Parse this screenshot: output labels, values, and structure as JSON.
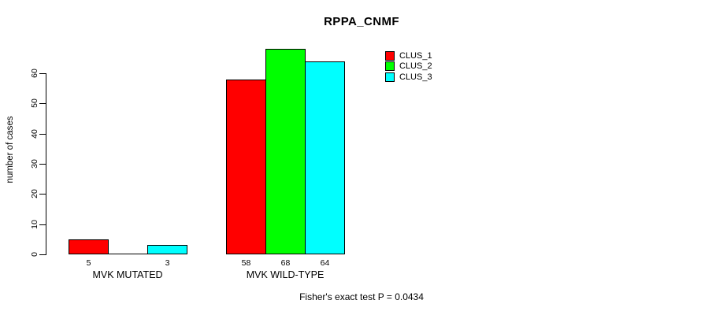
{
  "chart_data": {
    "type": "bar",
    "title": "RPPA_CNMF",
    "ylabel": "number of cases",
    "xlabel": "",
    "categories": [
      "MVK MUTATED",
      "MVK WILD-TYPE"
    ],
    "series": [
      {
        "name": "CLUS_1",
        "color": "#ff0000",
        "values": [
          5,
          58
        ]
      },
      {
        "name": "CLUS_2",
        "color": "#00ff00",
        "values": [
          0,
          68
        ]
      },
      {
        "name": "CLUS_3",
        "color": "#00ffff",
        "values": [
          3,
          64
        ]
      }
    ],
    "bar_value_labels": [
      [
        "5",
        "",
        "3"
      ],
      [
        "58",
        "68",
        "64"
      ]
    ],
    "yticks": [
      0,
      10,
      20,
      30,
      40,
      50,
      60
    ],
    "ylim": [
      0,
      60
    ],
    "grid": false,
    "legend_position": "top-right",
    "annotation": "Fisher's exact test P = 0.0434"
  },
  "colors": {
    "background": "#ffffff",
    "axis": "#000000",
    "text": "#000000"
  }
}
